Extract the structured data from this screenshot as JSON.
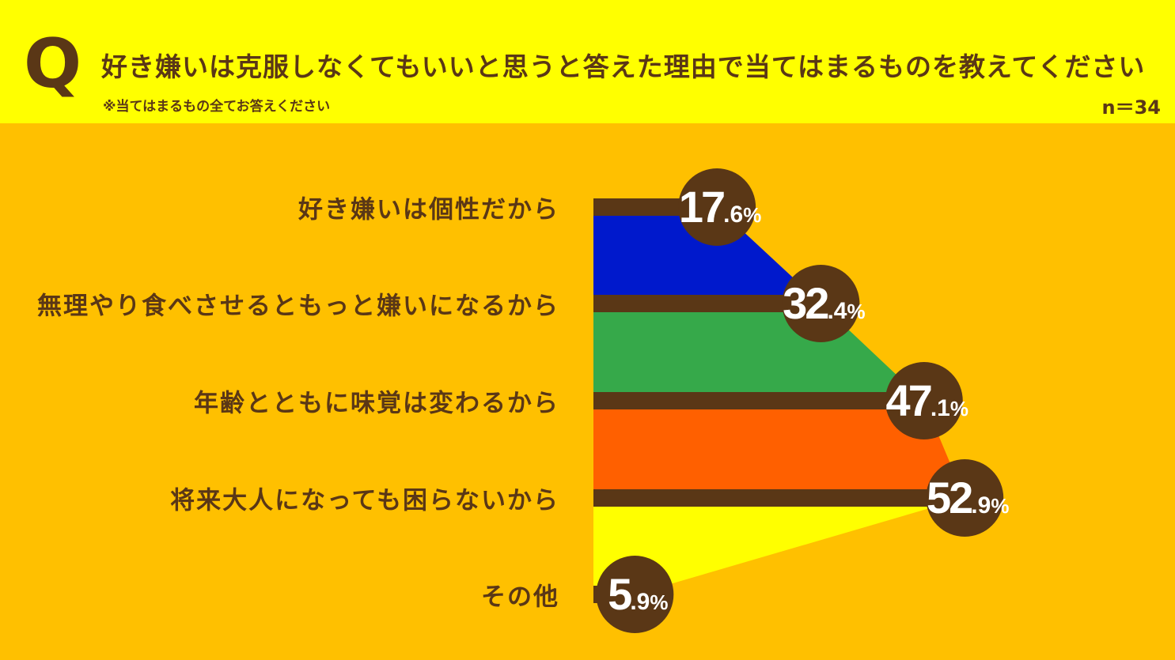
{
  "header": {
    "q_mark": "Q",
    "question": "好き嫌いは克服しなくてもいいと思うと答えた理由で当てはまるものを教えてください",
    "note": "※当てはまるもの全てお答えください",
    "sample_size": "n＝34"
  },
  "colors": {
    "header_bg": "#FFFF00",
    "page_bg": "#FFC000",
    "brown": "#5A3716",
    "bands": [
      "#0019CC",
      "#36A94A",
      "#FF6000",
      "#FFFF00"
    ]
  },
  "chart_data": {
    "type": "bar",
    "title": "",
    "categories": [
      "好き嫌いは個性だから",
      "無理やり食べさせるともっと嫌いになるから",
      "年齢とともに味覚は変わるから",
      "将来大人になっても困らないから",
      "その他"
    ],
    "values": [
      17.6,
      32.4,
      47.1,
      52.9,
      5.9
    ],
    "value_labels": [
      {
        "int": "17",
        "dec": ".6",
        "pct": "%"
      },
      {
        "int": "32",
        "dec": ".4",
        "pct": "%"
      },
      {
        "int": "47",
        "dec": ".1",
        "pct": "%"
      },
      {
        "int": "52",
        "dec": ".9",
        "pct": "%"
      },
      {
        "int": "5",
        "dec": ".9",
        "pct": "%"
      }
    ],
    "unit": "%",
    "orientation": "horizontal",
    "xlim": [
      0,
      60
    ]
  }
}
